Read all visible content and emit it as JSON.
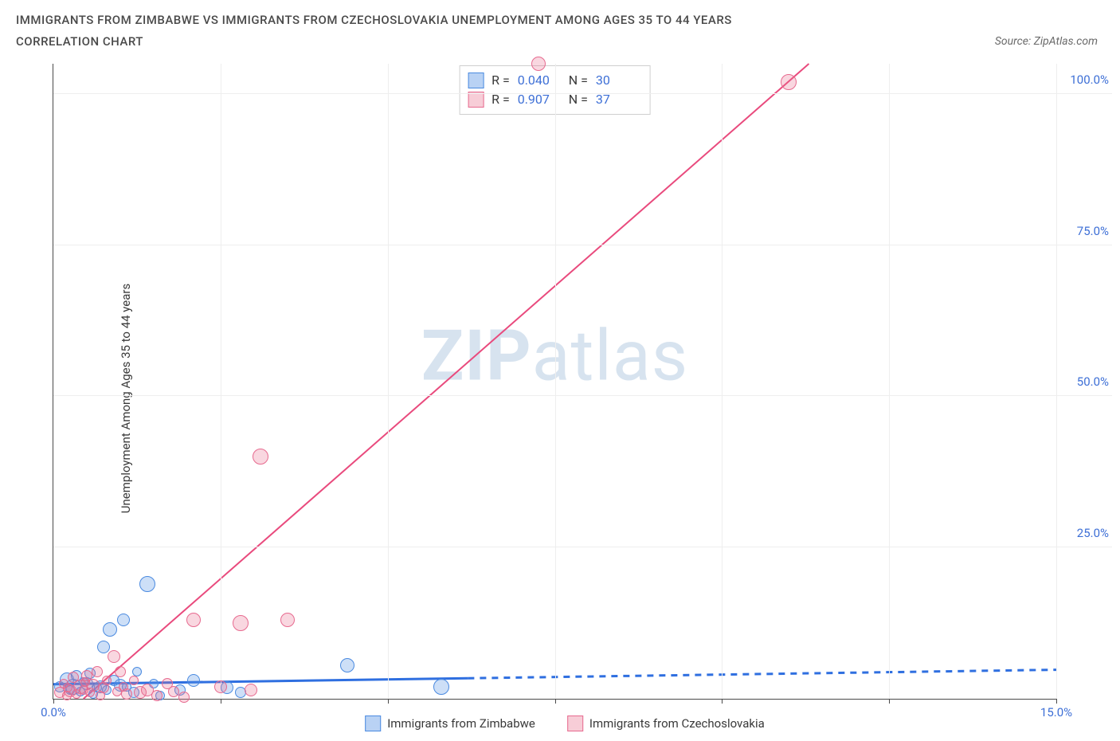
{
  "title_line1": "IMMIGRANTS FROM ZIMBABWE VS IMMIGRANTS FROM CZECHOSLOVAKIA UNEMPLOYMENT AMONG AGES 35 TO 44 YEARS",
  "title_line2": "CORRELATION CHART",
  "source_text": "Source: ZipAtlas.com",
  "y_axis_label": "Unemployment Among Ages 35 to 44 years",
  "watermark_bold": "ZIP",
  "watermark_rest": "atlas",
  "chart": {
    "type": "scatter",
    "xlim": [
      0,
      15
    ],
    "ylim": [
      0,
      105
    ],
    "x_ticks": [
      0,
      2.5,
      5,
      7.5,
      10,
      12.5,
      15
    ],
    "x_tick_labels": {
      "0": "0.0%",
      "15": "15.0%"
    },
    "y_ticks": [
      25,
      50,
      75,
      100
    ],
    "y_tick_labels": {
      "25": "25.0%",
      "50": "50.0%",
      "75": "75.0%",
      "100": "100.0%"
    },
    "background_color": "#ffffff",
    "grid_color": "#eeeeee",
    "axis_color": "#4a4a4a",
    "tick_label_color": "#3d6fd6",
    "series": [
      {
        "name": "Immigrants from Zimbabwe",
        "swatch_fill": "#b9d2f4",
        "swatch_stroke": "#4a8ae0",
        "point_fill": "rgba(90,150,230,0.30)",
        "point_stroke": "#4a8ae0",
        "trend_color": "#2f6fe0",
        "trend_width": 3,
        "trend_solid_to_x": 6.2,
        "trend": {
          "x1": 0.0,
          "y1": 2.4,
          "x2": 15.0,
          "y2": 4.8
        },
        "R": "0.040",
        "N": "30",
        "points": [
          {
            "x": 0.1,
            "y": 2.0,
            "r": 7
          },
          {
            "x": 0.2,
            "y": 3.2,
            "r": 9
          },
          {
            "x": 0.25,
            "y": 1.5,
            "r": 6
          },
          {
            "x": 0.3,
            "y": 2.0,
            "r": 10
          },
          {
            "x": 0.35,
            "y": 3.8,
            "r": 7
          },
          {
            "x": 0.4,
            "y": 1.2,
            "r": 6
          },
          {
            "x": 0.5,
            "y": 2.5,
            "r": 8
          },
          {
            "x": 0.55,
            "y": 4.2,
            "r": 7
          },
          {
            "x": 0.6,
            "y": 0.8,
            "r": 6
          },
          {
            "x": 0.7,
            "y": 2.0,
            "r": 8
          },
          {
            "x": 0.75,
            "y": 8.5,
            "r": 8
          },
          {
            "x": 0.8,
            "y": 1.5,
            "r": 6
          },
          {
            "x": 0.85,
            "y": 11.5,
            "r": 9
          },
          {
            "x": 0.9,
            "y": 3.0,
            "r": 7
          },
          {
            "x": 1.0,
            "y": 2.2,
            "r": 8
          },
          {
            "x": 1.05,
            "y": 13.0,
            "r": 8
          },
          {
            "x": 1.2,
            "y": 1.0,
            "r": 7
          },
          {
            "x": 1.25,
            "y": 4.5,
            "r": 6
          },
          {
            "x": 1.4,
            "y": 19.0,
            "r": 10
          },
          {
            "x": 1.5,
            "y": 2.5,
            "r": 6
          },
          {
            "x": 1.6,
            "y": 0.5,
            "r": 6
          },
          {
            "x": 1.9,
            "y": 1.5,
            "r": 7
          },
          {
            "x": 2.1,
            "y": 3.0,
            "r": 8
          },
          {
            "x": 2.6,
            "y": 1.8,
            "r": 8
          },
          {
            "x": 2.8,
            "y": 1.0,
            "r": 7
          },
          {
            "x": 4.4,
            "y": 5.5,
            "r": 9
          },
          {
            "x": 5.8,
            "y": 2.0,
            "r": 10
          },
          {
            "x": 0.45,
            "y": 2.8,
            "r": 6
          },
          {
            "x": 0.65,
            "y": 1.8,
            "r": 6
          },
          {
            "x": 1.1,
            "y": 2.0,
            "r": 6
          }
        ]
      },
      {
        "name": "Immigrants from Czechoslovakia",
        "swatch_fill": "#f7cdd7",
        "swatch_stroke": "#e76a8f",
        "point_fill": "rgba(235,110,145,0.28)",
        "point_stroke": "#e76a8f",
        "trend_color": "#e94a7d",
        "trend_width": 2,
        "trend_solid_to_x": 15.0,
        "trend": {
          "x1": 0.45,
          "y1": 0.0,
          "x2": 11.3,
          "y2": 105.0
        },
        "R": "0.907",
        "N": "37",
        "points": [
          {
            "x": 0.1,
            "y": 1.0,
            "r": 7
          },
          {
            "x": 0.15,
            "y": 2.5,
            "r": 6
          },
          {
            "x": 0.2,
            "y": 0.5,
            "r": 6
          },
          {
            "x": 0.25,
            "y": 1.3,
            "r": 8
          },
          {
            "x": 0.3,
            "y": 3.5,
            "r": 7
          },
          {
            "x": 0.35,
            "y": 0.8,
            "r": 6
          },
          {
            "x": 0.4,
            "y": 2.0,
            "r": 9
          },
          {
            "x": 0.45,
            "y": 1.5,
            "r": 6
          },
          {
            "x": 0.5,
            "y": 3.8,
            "r": 7
          },
          {
            "x": 0.55,
            "y": 1.0,
            "r": 6
          },
          {
            "x": 0.6,
            "y": 2.3,
            "r": 8
          },
          {
            "x": 0.65,
            "y": 4.5,
            "r": 7
          },
          {
            "x": 0.7,
            "y": 0.5,
            "r": 6
          },
          {
            "x": 0.75,
            "y": 1.8,
            "r": 7
          },
          {
            "x": 0.8,
            "y": 3.0,
            "r": 6
          },
          {
            "x": 0.9,
            "y": 7.0,
            "r": 8
          },
          {
            "x": 0.95,
            "y": 1.2,
            "r": 6
          },
          {
            "x": 1.0,
            "y": 4.5,
            "r": 7
          },
          {
            "x": 1.05,
            "y": 2.0,
            "r": 6
          },
          {
            "x": 1.1,
            "y": 0.8,
            "r": 7
          },
          {
            "x": 1.2,
            "y": 3.0,
            "r": 6
          },
          {
            "x": 1.3,
            "y": 1.0,
            "r": 8
          },
          {
            "x": 1.4,
            "y": 1.5,
            "r": 8
          },
          {
            "x": 1.55,
            "y": 0.5,
            "r": 7
          },
          {
            "x": 1.7,
            "y": 2.5,
            "r": 7
          },
          {
            "x": 1.8,
            "y": 1.2,
            "r": 7
          },
          {
            "x": 1.95,
            "y": 0.2,
            "r": 7
          },
          {
            "x": 2.1,
            "y": 13.0,
            "r": 9
          },
          {
            "x": 2.5,
            "y": 2.0,
            "r": 8
          },
          {
            "x": 2.8,
            "y": 12.5,
            "r": 10
          },
          {
            "x": 2.95,
            "y": 1.5,
            "r": 8
          },
          {
            "x": 3.1,
            "y": 40.0,
            "r": 10
          },
          {
            "x": 3.5,
            "y": 13.0,
            "r": 9
          },
          {
            "x": 7.25,
            "y": 105.0,
            "r": 9
          },
          {
            "x": 11.0,
            "y": 102.0,
            "r": 10
          },
          {
            "x": 0.22,
            "y": 1.8,
            "r": 6
          },
          {
            "x": 0.48,
            "y": 2.8,
            "r": 6
          }
        ]
      }
    ]
  },
  "stats_labels": {
    "R": "R =",
    "N": "N ="
  }
}
